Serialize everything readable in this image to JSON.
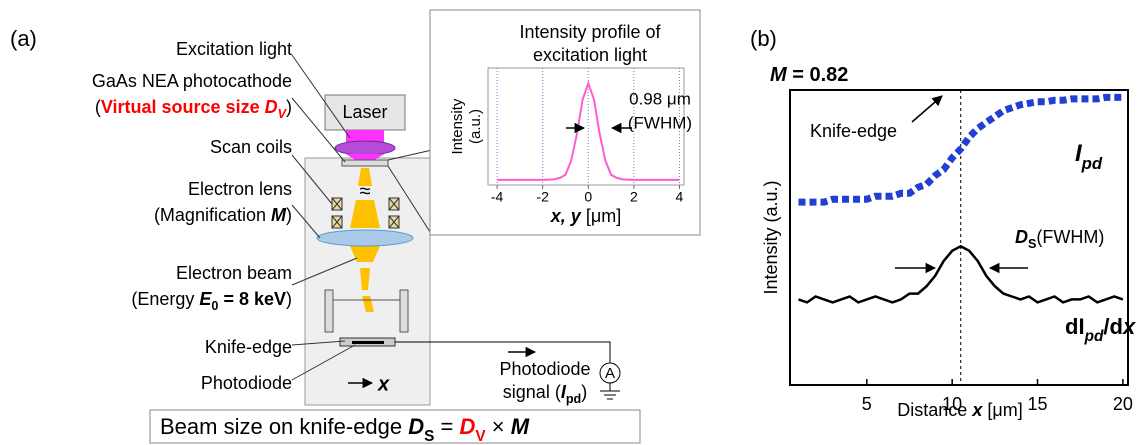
{
  "panel_a": {
    "label": "(a)",
    "labels": {
      "excitation_light": "Excitation light",
      "photocathode": "GaAs NEA photocathode",
      "virtual_source": [
        "(",
        "Virtual source size ",
        "D",
        "V",
        ")"
      ],
      "scan_coils": "Scan coils",
      "electron_lens": "Electron lens",
      "magnification": [
        "(Magnification ",
        "M",
        ")"
      ],
      "electron_beam": "Electron beam",
      "energy": [
        "(Energy ",
        "E",
        "0",
        " = 8 keV",
        ")"
      ],
      "knife_edge": "Knife-edge",
      "photodiode": "Photodiode",
      "laser": "Laser",
      "axis_x": "x",
      "signal_1": "Photodiode",
      "signal_2": [
        "signal (",
        "I",
        "pd",
        ")"
      ],
      "ammeter": "A"
    },
    "caption": [
      "Beam size on knife-edge ",
      "D",
      "S",
      " = ",
      "D",
      "V",
      " × ",
      "M"
    ]
  },
  "chart_data": [
    {
      "type": "line",
      "title": [
        "Intensity profile of",
        "excitation light"
      ],
      "ylabel": [
        "Intensity",
        "(a.u.)"
      ],
      "xlabel": [
        "x, y",
        " [μm]"
      ],
      "annotation": [
        "0.98 μm",
        "(FWHM)"
      ],
      "x": [
        -4,
        -3,
        -2,
        -1.5,
        -1.25,
        -1,
        -0.75,
        -0.5,
        -0.25,
        0,
        0.25,
        0.5,
        0.75,
        1,
        1.25,
        1.5,
        2,
        3,
        4
      ],
      "values": [
        0.05,
        0.05,
        0.05,
        0.055,
        0.07,
        0.1,
        0.24,
        0.5,
        0.84,
        1.0,
        0.84,
        0.5,
        0.24,
        0.1,
        0.07,
        0.055,
        0.05,
        0.05,
        0.05
      ],
      "color": "#ff5ccd",
      "xlim": [
        -4.4,
        4.2
      ],
      "xticks": [
        -4,
        -2,
        0,
        2,
        4
      ],
      "ylim": [
        0,
        1.15
      ],
      "grid": true
    },
    {
      "type": "line",
      "label": "(b)",
      "title": [
        "M",
        " = 0.82"
      ],
      "xlabel": [
        "Distance ",
        "x",
        " [μm]"
      ],
      "ylabel": "Intensity (a.u.)",
      "x": [
        1,
        1.5,
        2,
        2.5,
        3,
        3.5,
        4,
        4.5,
        5,
        5.5,
        6,
        6.5,
        7,
        7.5,
        8,
        8.5,
        9,
        9.5,
        10,
        10.5,
        11,
        11.5,
        12,
        12.5,
        13,
        13.5,
        14,
        14.5,
        15,
        15.5,
        16,
        16.5,
        17,
        17.5,
        18,
        18.5,
        19,
        19.5,
        20
      ],
      "series": [
        {
          "name": [
            "I",
            "pd"
          ],
          "color": "#1f3fd6",
          "values": [
            0.62,
            0.62,
            0.62,
            0.62,
            0.63,
            0.63,
            0.63,
            0.63,
            0.63,
            0.64,
            0.64,
            0.64,
            0.65,
            0.65,
            0.67,
            0.68,
            0.71,
            0.73,
            0.77,
            0.8,
            0.84,
            0.87,
            0.89,
            0.91,
            0.93,
            0.94,
            0.95,
            0.955,
            0.96,
            0.96,
            0.965,
            0.965,
            0.97,
            0.97,
            0.97,
            0.97,
            0.975,
            0.975,
            0.975
          ]
        },
        {
          "name": [
            "dI",
            "pd",
            "/d",
            "x"
          ],
          "color": "#000000",
          "values": [
            0.29,
            0.28,
            0.3,
            0.29,
            0.28,
            0.29,
            0.3,
            0.28,
            0.29,
            0.3,
            0.29,
            0.28,
            0.29,
            0.31,
            0.31,
            0.335,
            0.37,
            0.42,
            0.455,
            0.47,
            0.455,
            0.42,
            0.37,
            0.335,
            0.31,
            0.3,
            0.29,
            0.3,
            0.28,
            0.29,
            0.3,
            0.28,
            0.29,
            0.29,
            0.3,
            0.28,
            0.29,
            0.3,
            0.29
          ]
        }
      ],
      "knife_edge_label": "Knife-edge",
      "knife_edge_x": 10.5,
      "fwhm_label": [
        "D",
        "S",
        "(FWHM)"
      ],
      "xlim": [
        0.5,
        20.3
      ],
      "xticks": [
        5,
        10,
        15,
        20
      ],
      "ylim": [
        0,
        1
      ]
    }
  ]
}
